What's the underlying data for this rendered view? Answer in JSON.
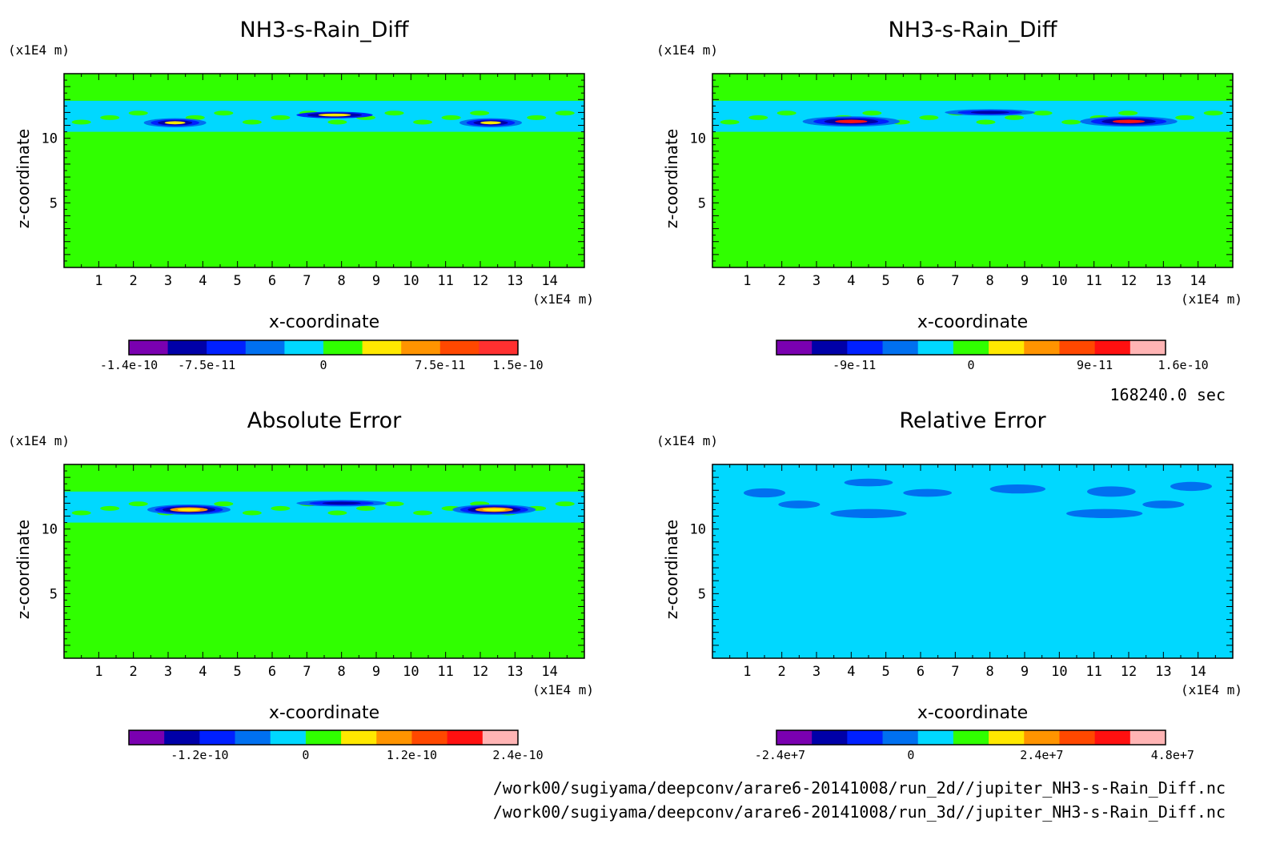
{
  "colors": {
    "purple": "#7a00b0",
    "navy": "#0000a8",
    "blue": "#0020ff",
    "azure": "#0070f0",
    "cyan": "#00d8ff",
    "green": "#30ff00",
    "yellow": "#ffe800",
    "orange": "#ff9400",
    "redorange": "#ff4800",
    "red": "#ff1010",
    "red2": "#ff3030",
    "pink": "#ffb4b4"
  },
  "time_label": "168240.0 sec",
  "file_paths": [
    "/work00/sugiyama/deepconv/arare6-20141008/run_2d//jupiter_NH3-s-Rain_Diff.nc",
    "/work00/sugiyama/deepconv/arare6-20141008/run_3d//jupiter_NH3-s-Rain_Diff.nc"
  ],
  "chart_data": [
    {
      "type": "heatmap",
      "title": "NH3-s-Rain_Diff",
      "xlabel": "x-coordinate",
      "xunit": "(x1E4 m)",
      "ylabel": "z-coordinate",
      "yunit": "(x1E4 m)",
      "xlim": [
        0,
        15
      ],
      "ylim": [
        0,
        15
      ],
      "xticks": [
        "1",
        "2",
        "3",
        "4",
        "5",
        "6",
        "7",
        "8",
        "9",
        "10",
        "11",
        "12",
        "13",
        "14"
      ],
      "yticks": [
        "5",
        "10"
      ],
      "colorbar": {
        "colors": [
          "purple",
          "navy",
          "blue",
          "azure",
          "cyan",
          "green",
          "yellow",
          "orange",
          "redorange",
          "red2"
        ],
        "labels": [
          "-1.4e-10",
          "-7.5e-11",
          "0",
          "7.5e-11",
          "1.5e-10"
        ],
        "label_at": [
          0,
          2,
          5,
          8,
          10
        ]
      }
    },
    {
      "type": "heatmap",
      "title": "NH3-s-Rain_Diff",
      "xlabel": "x-coordinate",
      "xunit": "(x1E4 m)",
      "ylabel": "z-coordinate",
      "yunit": "(x1E4 m)",
      "xlim": [
        0,
        15
      ],
      "ylim": [
        0,
        15
      ],
      "xticks": [
        "1",
        "2",
        "3",
        "4",
        "5",
        "6",
        "7",
        "8",
        "9",
        "10",
        "11",
        "12",
        "13",
        "14"
      ],
      "yticks": [
        "5",
        "10"
      ],
      "colorbar": {
        "colors": [
          "purple",
          "navy",
          "blue",
          "azure",
          "cyan",
          "green",
          "yellow",
          "orange",
          "redorange",
          "red",
          "pink"
        ],
        "labels": [
          "-9e-11",
          "0",
          "9e-11",
          "1.6e-10"
        ],
        "label_at": [
          2.2,
          5.5,
          9,
          11.5
        ]
      }
    },
    {
      "type": "heatmap",
      "title": "Absolute Error",
      "xlabel": "x-coordinate",
      "xunit": "(x1E4 m)",
      "ylabel": "z-coordinate",
      "yunit": "(x1E4 m)",
      "xlim": [
        0,
        15
      ],
      "ylim": [
        0,
        15
      ],
      "xticks": [
        "1",
        "2",
        "3",
        "4",
        "5",
        "6",
        "7",
        "8",
        "9",
        "10",
        "11",
        "12",
        "13",
        "14"
      ],
      "yticks": [
        "5",
        "10"
      ],
      "colorbar": {
        "colors": [
          "purple",
          "navy",
          "blue",
          "azure",
          "cyan",
          "green",
          "yellow",
          "orange",
          "redorange",
          "red",
          "pink"
        ],
        "labels": [
          "-1.2e-10",
          "0",
          "1.2e-10",
          "2.4e-10"
        ],
        "label_at": [
          2,
          5,
          8,
          11
        ]
      }
    },
    {
      "type": "heatmap",
      "title": "Relative Error",
      "xlabel": "x-coordinate",
      "xunit": "(x1E4 m)",
      "ylabel": "z-coordinate",
      "yunit": "(x1E4 m)",
      "xlim": [
        0,
        15
      ],
      "ylim": [
        0,
        15
      ],
      "xticks": [
        "1",
        "2",
        "3",
        "4",
        "5",
        "6",
        "7",
        "8",
        "9",
        "10",
        "11",
        "12",
        "13",
        "14"
      ],
      "yticks": [
        "5",
        "10"
      ],
      "colorbar": {
        "colors": [
          "purple",
          "navy",
          "blue",
          "azure",
          "cyan",
          "green",
          "yellow",
          "orange",
          "redorange",
          "red",
          "pink"
        ],
        "labels": [
          "-2.4e+7",
          "0",
          "2.4e+7",
          "4.8e+7"
        ],
        "label_at": [
          0.1,
          3.8,
          7.5,
          11.2
        ]
      }
    }
  ]
}
